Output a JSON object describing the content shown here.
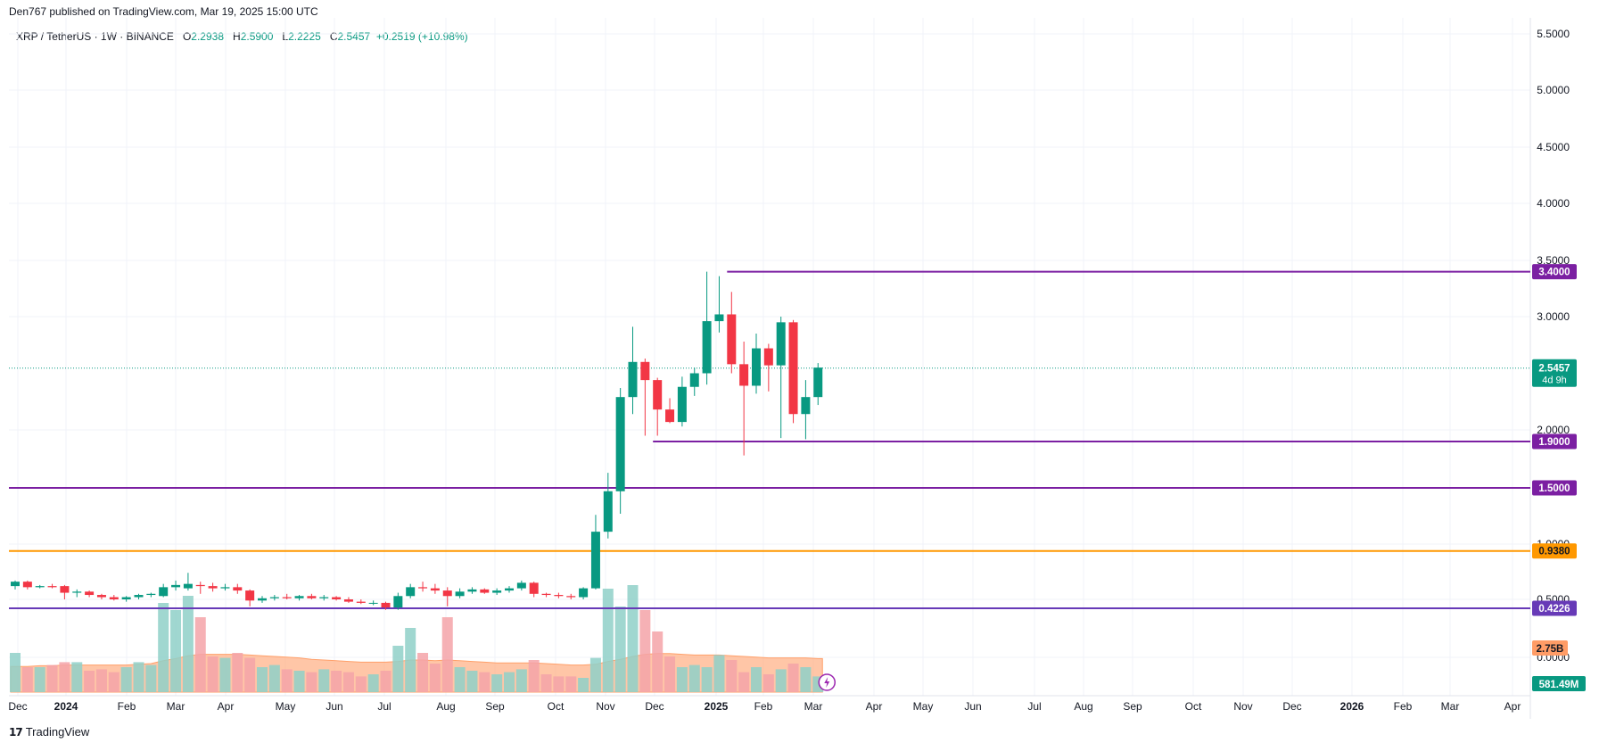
{
  "header": {
    "published": "Den767 published on TradingView.com, Mar 19, 2025 15:00 UTC"
  },
  "legend": {
    "symbol": "XRP / TetherUS · 1W · BINANCE",
    "o_label": "O",
    "o_value": "2.2938",
    "h_label": "H",
    "h_value": "2.5900",
    "l_label": "L",
    "l_value": "2.2225",
    "c_label": "C",
    "c_value": "2.5457",
    "change": "+0.2519 (+10.98%)"
  },
  "brand": {
    "logo": "17",
    "name": "TradingView"
  },
  "colors": {
    "up": "#089981",
    "down": "#f23645",
    "vol_up": "#8fd0c8",
    "vol_down": "#f5a3a8",
    "level_purple": "#7b1fa2",
    "level_orange": "#ff9800",
    "level_violet": "#673ab7",
    "vol_ma_fill": "#ffb38a"
  },
  "chart_data": {
    "type": "candlestick",
    "interval": "1W",
    "y_axis": {
      "ticks": [
        "5.5000",
        "5.0000",
        "4.5000",
        "4.0000",
        "3.5000",
        "3.0000",
        "2.0000",
        "1.0000",
        "0.5000",
        "0.0000"
      ],
      "range": [
        0,
        5.5
      ]
    },
    "x_axis": {
      "ticks": [
        {
          "label": "Dec",
          "bold": false
        },
        {
          "label": "2024",
          "bold": true
        },
        {
          "label": "Feb",
          "bold": false
        },
        {
          "label": "Mar",
          "bold": false
        },
        {
          "label": "Apr",
          "bold": false
        },
        {
          "label": "May",
          "bold": false
        },
        {
          "label": "Jun",
          "bold": false
        },
        {
          "label": "Jul",
          "bold": false
        },
        {
          "label": "Aug",
          "bold": false
        },
        {
          "label": "Sep",
          "bold": false
        },
        {
          "label": "Oct",
          "bold": false
        },
        {
          "label": "Nov",
          "bold": false
        },
        {
          "label": "Dec",
          "bold": false
        },
        {
          "label": "2025",
          "bold": true
        },
        {
          "label": "Feb",
          "bold": false
        },
        {
          "label": "Mar",
          "bold": false
        },
        {
          "label": "Apr",
          "bold": false
        },
        {
          "label": "May",
          "bold": false
        },
        {
          "label": "Jun",
          "bold": false
        },
        {
          "label": "Jul",
          "bold": false
        },
        {
          "label": "Aug",
          "bold": false
        },
        {
          "label": "Sep",
          "bold": false
        },
        {
          "label": "Oct",
          "bold": false
        },
        {
          "label": "Nov",
          "bold": false
        },
        {
          "label": "Dec",
          "bold": false
        },
        {
          "label": "2026",
          "bold": true
        },
        {
          "label": "Feb",
          "bold": false
        },
        {
          "label": "Mar",
          "bold": false
        },
        {
          "label": "Apr",
          "bold": false
        }
      ]
    },
    "candles": [
      {
        "o": 0.62,
        "h": 0.67,
        "l": 0.59,
        "c": 0.66
      },
      {
        "o": 0.66,
        "h": 0.67,
        "l": 0.59,
        "c": 0.61
      },
      {
        "o": 0.61,
        "h": 0.63,
        "l": 0.6,
        "c": 0.62
      },
      {
        "o": 0.62,
        "h": 0.64,
        "l": 0.6,
        "c": 0.61
      },
      {
        "o": 0.62,
        "h": 0.63,
        "l": 0.5,
        "c": 0.56
      },
      {
        "o": 0.56,
        "h": 0.59,
        "l": 0.52,
        "c": 0.57
      },
      {
        "o": 0.57,
        "h": 0.58,
        "l": 0.52,
        "c": 0.54
      },
      {
        "o": 0.54,
        "h": 0.55,
        "l": 0.5,
        "c": 0.52
      },
      {
        "o": 0.52,
        "h": 0.54,
        "l": 0.49,
        "c": 0.5
      },
      {
        "o": 0.5,
        "h": 0.53,
        "l": 0.48,
        "c": 0.52
      },
      {
        "o": 0.52,
        "h": 0.55,
        "l": 0.5,
        "c": 0.54
      },
      {
        "o": 0.54,
        "h": 0.56,
        "l": 0.52,
        "c": 0.55
      },
      {
        "o": 0.53,
        "h": 0.64,
        "l": 0.52,
        "c": 0.61
      },
      {
        "o": 0.61,
        "h": 0.67,
        "l": 0.58,
        "c": 0.63
      },
      {
        "o": 0.6,
        "h": 0.74,
        "l": 0.58,
        "c": 0.64
      },
      {
        "o": 0.63,
        "h": 0.66,
        "l": 0.55,
        "c": 0.62
      },
      {
        "o": 0.62,
        "h": 0.65,
        "l": 0.57,
        "c": 0.6
      },
      {
        "o": 0.6,
        "h": 0.64,
        "l": 0.58,
        "c": 0.61
      },
      {
        "o": 0.61,
        "h": 0.64,
        "l": 0.55,
        "c": 0.58
      },
      {
        "o": 0.58,
        "h": 0.59,
        "l": 0.44,
        "c": 0.49
      },
      {
        "o": 0.49,
        "h": 0.53,
        "l": 0.47,
        "c": 0.51
      },
      {
        "o": 0.51,
        "h": 0.54,
        "l": 0.49,
        "c": 0.52
      },
      {
        "o": 0.52,
        "h": 0.55,
        "l": 0.5,
        "c": 0.51
      },
      {
        "o": 0.51,
        "h": 0.54,
        "l": 0.49,
        "c": 0.53
      },
      {
        "o": 0.53,
        "h": 0.55,
        "l": 0.5,
        "c": 0.51
      },
      {
        "o": 0.51,
        "h": 0.54,
        "l": 0.49,
        "c": 0.52
      },
      {
        "o": 0.52,
        "h": 0.53,
        "l": 0.49,
        "c": 0.5
      },
      {
        "o": 0.5,
        "h": 0.52,
        "l": 0.47,
        "c": 0.48
      },
      {
        "o": 0.48,
        "h": 0.5,
        "l": 0.46,
        "c": 0.47
      },
      {
        "o": 0.47,
        "h": 0.49,
        "l": 0.45,
        "c": 0.47
      },
      {
        "o": 0.47,
        "h": 0.48,
        "l": 0.41,
        "c": 0.43
      },
      {
        "o": 0.43,
        "h": 0.56,
        "l": 0.41,
        "c": 0.53
      },
      {
        "o": 0.53,
        "h": 0.64,
        "l": 0.51,
        "c": 0.61
      },
      {
        "o": 0.61,
        "h": 0.66,
        "l": 0.57,
        "c": 0.6
      },
      {
        "o": 0.6,
        "h": 0.64,
        "l": 0.55,
        "c": 0.58
      },
      {
        "o": 0.58,
        "h": 0.61,
        "l": 0.44,
        "c": 0.53
      },
      {
        "o": 0.53,
        "h": 0.6,
        "l": 0.51,
        "c": 0.57
      },
      {
        "o": 0.57,
        "h": 0.61,
        "l": 0.55,
        "c": 0.59
      },
      {
        "o": 0.59,
        "h": 0.6,
        "l": 0.55,
        "c": 0.56
      },
      {
        "o": 0.56,
        "h": 0.6,
        "l": 0.54,
        "c": 0.58
      },
      {
        "o": 0.58,
        "h": 0.62,
        "l": 0.56,
        "c": 0.6
      },
      {
        "o": 0.6,
        "h": 0.67,
        "l": 0.58,
        "c": 0.65
      },
      {
        "o": 0.65,
        "h": 0.66,
        "l": 0.52,
        "c": 0.55
      },
      {
        "o": 0.55,
        "h": 0.56,
        "l": 0.52,
        "c": 0.54
      },
      {
        "o": 0.54,
        "h": 0.56,
        "l": 0.51,
        "c": 0.53
      },
      {
        "o": 0.53,
        "h": 0.55,
        "l": 0.5,
        "c": 0.52
      },
      {
        "o": 0.52,
        "h": 0.61,
        "l": 0.5,
        "c": 0.6
      },
      {
        "o": 0.6,
        "h": 1.26,
        "l": 0.59,
        "c": 1.11
      },
      {
        "o": 1.11,
        "h": 1.63,
        "l": 1.05,
        "c": 1.47
      },
      {
        "o": 1.47,
        "h": 2.37,
        "l": 1.27,
        "c": 2.29
      },
      {
        "o": 2.29,
        "h": 2.91,
        "l": 2.14,
        "c": 2.6
      },
      {
        "o": 2.6,
        "h": 2.63,
        "l": 1.95,
        "c": 2.44
      },
      {
        "o": 2.44,
        "h": 2.46,
        "l": 1.95,
        "c": 2.18
      },
      {
        "o": 2.18,
        "h": 2.28,
        "l": 2.06,
        "c": 2.07
      },
      {
        "o": 2.07,
        "h": 2.47,
        "l": 2.03,
        "c": 2.38
      },
      {
        "o": 2.38,
        "h": 2.55,
        "l": 2.3,
        "c": 2.5
      },
      {
        "o": 2.5,
        "h": 3.4,
        "l": 2.4,
        "c": 2.96
      },
      {
        "o": 2.96,
        "h": 3.36,
        "l": 2.86,
        "c": 3.02
      },
      {
        "o": 3.02,
        "h": 3.22,
        "l": 2.5,
        "c": 2.58
      },
      {
        "o": 2.58,
        "h": 2.78,
        "l": 1.78,
        "c": 2.39
      },
      {
        "o": 2.39,
        "h": 2.85,
        "l": 2.32,
        "c": 2.72
      },
      {
        "o": 2.72,
        "h": 2.76,
        "l": 2.34,
        "c": 2.57
      },
      {
        "o": 2.57,
        "h": 3.0,
        "l": 1.93,
        "c": 2.95
      },
      {
        "o": 2.95,
        "h": 2.97,
        "l": 2.06,
        "c": 2.14
      },
      {
        "o": 2.14,
        "h": 2.44,
        "l": 1.92,
        "c": 2.29
      },
      {
        "o": 2.29,
        "h": 2.59,
        "l": 2.22,
        "c": 2.55
      }
    ],
    "volume": [
      0.55,
      0.35,
      0.35,
      0.38,
      0.42,
      0.42,
      0.3,
      0.32,
      0.28,
      0.35,
      0.42,
      0.38,
      1.25,
      1.15,
      1.35,
      1.05,
      0.5,
      0.48,
      0.55,
      0.48,
      0.35,
      0.38,
      0.32,
      0.3,
      0.28,
      0.32,
      0.3,
      0.28,
      0.22,
      0.25,
      0.3,
      0.65,
      0.9,
      0.55,
      0.4,
      1.05,
      0.35,
      0.3,
      0.28,
      0.25,
      0.28,
      0.32,
      0.45,
      0.25,
      0.22,
      0.22,
      0.2,
      0.48,
      1.45,
      1.2,
      1.5,
      1.15,
      0.85,
      0.5,
      0.35,
      0.38,
      0.35,
      0.52,
      0.45,
      0.28,
      0.35,
      0.25,
      0.32,
      0.4,
      0.35,
      0.22
    ],
    "volume_ma": [
      0.36,
      0.36,
      0.37,
      0.37,
      0.38,
      0.38,
      0.38,
      0.38,
      0.38,
      0.38,
      0.39,
      0.4,
      0.44,
      0.47,
      0.51,
      0.53,
      0.53,
      0.53,
      0.53,
      0.52,
      0.51,
      0.5,
      0.49,
      0.48,
      0.46,
      0.45,
      0.44,
      0.43,
      0.42,
      0.42,
      0.42,
      0.43,
      0.45,
      0.45,
      0.44,
      0.45,
      0.44,
      0.43,
      0.42,
      0.41,
      0.41,
      0.41,
      0.41,
      0.4,
      0.39,
      0.38,
      0.38,
      0.39,
      0.43,
      0.46,
      0.5,
      0.53,
      0.54,
      0.54,
      0.53,
      0.52,
      0.52,
      0.52,
      0.51,
      0.5,
      0.49,
      0.48,
      0.48,
      0.48,
      0.48,
      0.47
    ],
    "levels": [
      {
        "value": 3.4,
        "label": "3.4000",
        "color": "#7b1fa2",
        "start_index": 58
      },
      {
        "value": 1.9,
        "label": "1.9000",
        "color": "#7b1fa2",
        "start_index": 52
      },
      {
        "value": 1.5,
        "label": "1.5000",
        "color": "#7b1fa2",
        "start_index": 0
      },
      {
        "value": 0.938,
        "label": "0.9380",
        "color": "#ff9800",
        "start_index": 0
      },
      {
        "value": 0.4226,
        "label": "0.4226",
        "color": "#673ab7",
        "start_index": 0
      }
    ],
    "last_price": {
      "value": 2.5457,
      "label": "2.5457",
      "countdown": "4d 9h"
    },
    "volume_labels": {
      "ma": "2.75B",
      "current": "581.49M"
    }
  }
}
